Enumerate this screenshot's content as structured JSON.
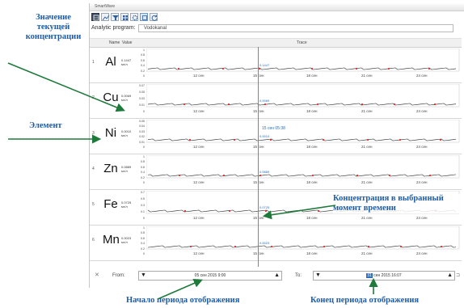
{
  "window": {
    "title": "SmartWare"
  },
  "toolbar": {
    "buttons": [
      "table-icon",
      "chart-icon",
      "filter-icon",
      "grid-icon",
      "settings-icon",
      "refresh-icon"
    ]
  },
  "program": {
    "label": "Analytic program:",
    "value": "Vodokanal"
  },
  "grid": {
    "col_name": "Name",
    "col_value": "Value",
    "col_trace": "Trace"
  },
  "time_axis": [
    "12 сен",
    "15 сен",
    "18 сен",
    "21 сен",
    "24 сен"
  ],
  "cursor": {
    "label": "15 сен 05:38"
  },
  "elements": [
    {
      "num": "1",
      "symbol": "Al",
      "value": "0.1447",
      "unit": "мг/л",
      "ticks": [
        "1",
        "0.8",
        "0.6",
        "0.4",
        "0.2",
        "0"
      ],
      "point_label": "0.1447"
    },
    {
      "num": "2",
      "symbol": "Cu",
      "value": "0.0069",
      "unit": "мг/л",
      "ticks": [
        "0.07",
        "0.05",
        "0.03",
        "0.01",
        "0"
      ],
      "point_label": "0.0069"
    },
    {
      "num": "3",
      "symbol": "Ni",
      "value": "0.0010",
      "unit": "мг/л",
      "ticks": [
        "0.05",
        "0.04",
        "0.03",
        "0.02",
        "0.01",
        "0"
      ],
      "point_label": "0.0010"
    },
    {
      "num": "4",
      "symbol": "Zn",
      "value": "0.0889",
      "unit": "мг/л",
      "ticks": [
        "1",
        "0.8",
        "0.6",
        "0.4",
        "0.2",
        "0"
      ],
      "point_label": "0.0889"
    },
    {
      "num": "5",
      "symbol": "Fe",
      "value": "0.0725",
      "unit": "мг/л",
      "ticks": [
        "0.7",
        "0.5",
        "0.3",
        "0.1",
        "0"
      ],
      "point_label": "0.0725"
    },
    {
      "num": "6",
      "symbol": "Mn",
      "value": "0.0023",
      "unit": "мг/л",
      "ticks": [
        "1",
        "0.8",
        "0.6",
        "0.4",
        "0.2",
        "0"
      ],
      "point_label": "0.0023"
    }
  ],
  "bottom": {
    "from_label": "From:",
    "from_value": "05 сен 2015 9:00",
    "to_label": "To:",
    "to_day": "31",
    "to_value": "сен 2015 16:07"
  },
  "callouts": {
    "current_concentration": "Значение текущей концентрации",
    "element": "Элемент",
    "concentration_at_moment": "Концентрация в выбранный момент времени",
    "period_start": "Начало периода отображения",
    "period_end": "Конец периода отображения"
  },
  "colors": {
    "accent": "#4d8fd9",
    "callout": "#1e5ca8",
    "series_line": "#444444",
    "series_marker": "#e03030"
  }
}
